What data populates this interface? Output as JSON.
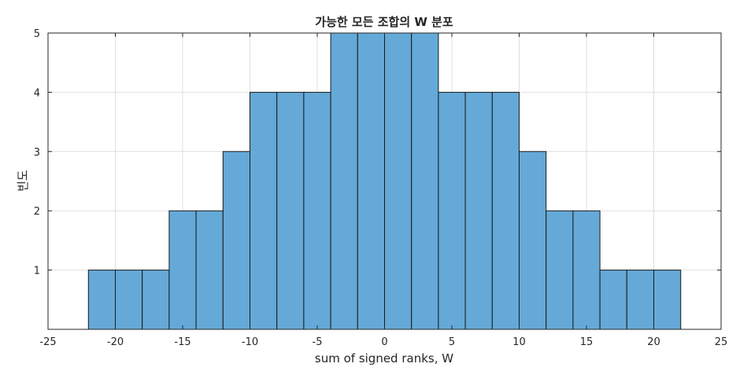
{
  "chart_data": {
    "type": "bar",
    "title": "가능한 모든 조합의 W 분포",
    "xlabel": "sum of signed ranks, W",
    "ylabel": "빈도",
    "xlim": [
      -25,
      25
    ],
    "ylim": [
      0,
      5
    ],
    "xticks": [
      -25,
      -20,
      -15,
      -10,
      -5,
      0,
      5,
      10,
      15,
      20,
      25
    ],
    "yticks": [
      1,
      2,
      3,
      4,
      5
    ],
    "grid": true,
    "bin_edges": [
      -22,
      -20,
      -18,
      -16,
      -14,
      -12,
      -10,
      -8,
      -6,
      -4,
      -2,
      0,
      2,
      4,
      6,
      8,
      10,
      12,
      14,
      16,
      18,
      20,
      22
    ],
    "values": [
      1,
      1,
      1,
      2,
      2,
      3,
      4,
      4,
      4,
      5,
      5,
      5,
      5,
      4,
      4,
      4,
      3,
      2,
      2,
      1,
      1,
      1
    ],
    "bar_color": "#64a9d8",
    "edge_color": "#1a1a1a"
  }
}
